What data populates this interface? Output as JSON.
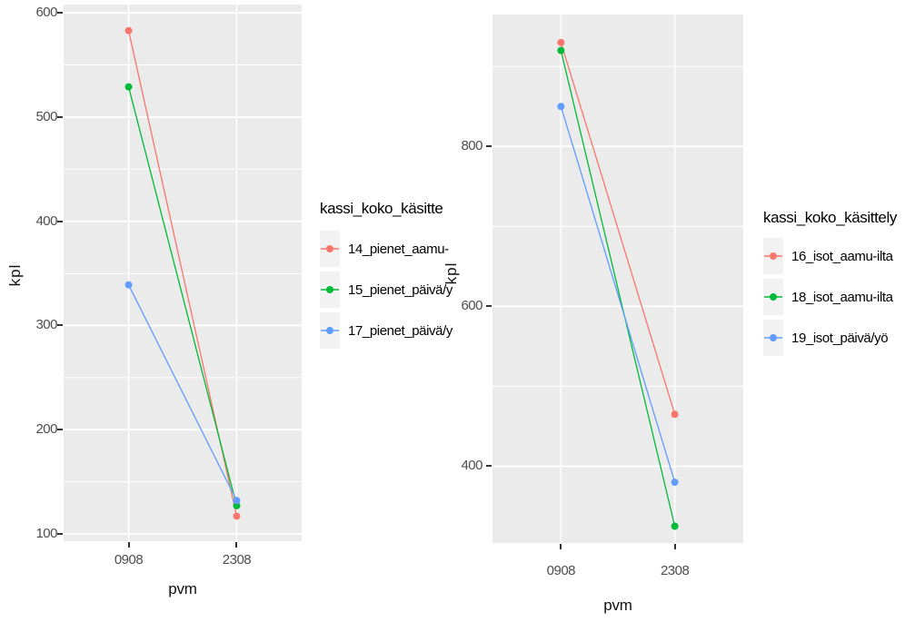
{
  "chart_data": [
    {
      "type": "line",
      "title": "",
      "xlabel": "pvm",
      "ylabel": "kpl",
      "x_categories": [
        "0908",
        "2308"
      ],
      "x_positions": [
        0.273,
        0.727
      ],
      "ylim": [
        93,
        608
      ],
      "yticks": [
        100,
        200,
        300,
        400,
        500,
        600
      ],
      "yticks_minor": [
        150,
        250,
        350,
        450,
        550
      ],
      "grid": "on",
      "legend_position": "right",
      "legend_title": "kassi_koko_käsitte",
      "series": [
        {
          "name": "14_pienet_aamu-",
          "color": "#F8766D",
          "values": [
            583,
            117
          ]
        },
        {
          "name": "15_pienet_päivä/y",
          "color": "#00BA38",
          "values": [
            529,
            127
          ]
        },
        {
          "name": "17_pienet_päivä/y",
          "color": "#619CFF",
          "values": [
            339,
            132
          ]
        }
      ]
    },
    {
      "type": "line",
      "title": "",
      "xlabel": "pvm",
      "ylabel": "kpl",
      "x_categories": [
        "0908",
        "2308"
      ],
      "x_positions": [
        0.273,
        0.727
      ],
      "ylim": [
        304,
        965
      ],
      "yticks": [
        400,
        600,
        800
      ],
      "yticks_minor": [
        500,
        700,
        900
      ],
      "grid": "on",
      "legend_position": "right",
      "legend_title": "kassi_koko_käsittely",
      "series": [
        {
          "name": "16_isot_aamu-ilta",
          "color": "#F8766D",
          "values": [
            930,
            465
          ]
        },
        {
          "name": "18_isot_aamu-ilta",
          "color": "#00BA38",
          "values": [
            920,
            325
          ]
        },
        {
          "name": "19_isot_päivä/yö",
          "color": "#619CFF",
          "values": [
            850,
            380
          ]
        }
      ]
    }
  ],
  "colors": {
    "panel_background": "#EBEBEB",
    "gridline": "#FFFFFF",
    "tick_text": "#4D4D4D",
    "legend_key_background": "#F2F2F2",
    "palette": [
      "#F8766D",
      "#00BA38",
      "#619CFF"
    ]
  }
}
